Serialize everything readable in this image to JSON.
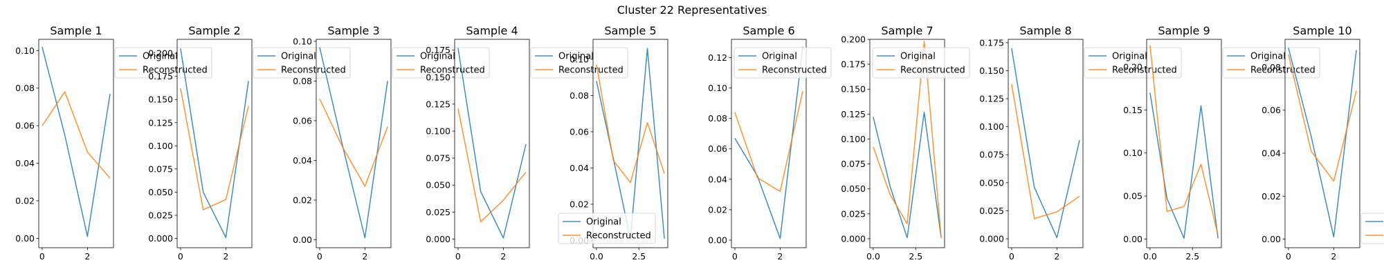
{
  "suptitle": "Cluster 22 Representatives",
  "colors": {
    "original": "#1f77b4",
    "reconstructed": "#ff7f0e"
  },
  "chart_data": [
    {
      "type": "line",
      "title": "Sample 1",
      "xlim": [
        -0.15,
        3.15
      ],
      "ylim": [
        -0.005,
        0.106
      ],
      "xticks": [
        {
          "v": 0,
          "t": "0"
        },
        {
          "v": 2,
          "t": "2"
        }
      ],
      "yticks": [
        {
          "v": 0,
          "t": "0.00"
        },
        {
          "v": 0.02,
          "t": "0.02"
        },
        {
          "v": 0.04,
          "t": "0.04"
        },
        {
          "v": 0.06,
          "t": "0.06"
        },
        {
          "v": 0.08,
          "t": "0.08"
        },
        {
          "v": 0.1,
          "t": "0.10"
        }
      ],
      "legend": "upper-right-outside",
      "series": [
        {
          "name": "Original",
          "x": [
            0,
            1,
            2,
            3
          ],
          "y": [
            0.102,
            0.055,
            0.001,
            0.077
          ]
        },
        {
          "name": "Reconstructed",
          "x": [
            0,
            1,
            2,
            3
          ],
          "y": [
            0.06,
            0.078,
            0.046,
            0.032
          ]
        }
      ]
    },
    {
      "type": "line",
      "title": "Sample 2",
      "xlim": [
        -0.15,
        3.15
      ],
      "ylim": [
        -0.01,
        0.215
      ],
      "xticks": [
        {
          "v": 0,
          "t": "0"
        },
        {
          "v": 2,
          "t": "2"
        }
      ],
      "yticks": [
        {
          "v": 0,
          "t": "0.000"
        },
        {
          "v": 0.025,
          "t": "0.025"
        },
        {
          "v": 0.05,
          "t": "0.050"
        },
        {
          "v": 0.075,
          "t": "0.075"
        },
        {
          "v": 0.1,
          "t": "0.100"
        },
        {
          "v": 0.125,
          "t": "0.125"
        },
        {
          "v": 0.15,
          "t": "0.150"
        },
        {
          "v": 0.175,
          "t": "0.175"
        },
        {
          "v": 0.2,
          "t": "0.200"
        }
      ],
      "legend": "upper-right-outside",
      "series": [
        {
          "name": "Original",
          "x": [
            0,
            1,
            2,
            3
          ],
          "y": [
            0.205,
            0.05,
            0.001,
            0.17
          ]
        },
        {
          "name": "Reconstructed",
          "x": [
            0,
            1,
            2,
            3
          ],
          "y": [
            0.162,
            0.031,
            0.042,
            0.143
          ]
        }
      ]
    },
    {
      "type": "line",
      "title": "Sample 3",
      "xlim": [
        -0.15,
        3.15
      ],
      "ylim": [
        -0.004,
        0.101
      ],
      "xticks": [
        {
          "v": 0,
          "t": "0"
        },
        {
          "v": 2,
          "t": "2"
        }
      ],
      "yticks": [
        {
          "v": 0,
          "t": "0.00"
        },
        {
          "v": 0.02,
          "t": "0.02"
        },
        {
          "v": 0.04,
          "t": "0.04"
        },
        {
          "v": 0.06,
          "t": "0.06"
        },
        {
          "v": 0.08,
          "t": "0.08"
        },
        {
          "v": 0.1,
          "t": "0.10"
        }
      ],
      "legend": "upper-right-outside",
      "series": [
        {
          "name": "Original",
          "x": [
            0,
            1,
            2,
            3
          ],
          "y": [
            0.097,
            0.048,
            0.001,
            0.08
          ]
        },
        {
          "name": "Reconstructed",
          "x": [
            0,
            1,
            2,
            3
          ],
          "y": [
            0.071,
            0.047,
            0.027,
            0.057
          ]
        }
      ]
    },
    {
      "type": "line",
      "title": "Sample 4",
      "xlim": [
        -0.15,
        3.15
      ],
      "ylim": [
        -0.008,
        0.185
      ],
      "xticks": [
        {
          "v": 0,
          "t": "0"
        },
        {
          "v": 2,
          "t": "2"
        }
      ],
      "yticks": [
        {
          "v": 0,
          "t": "0.000"
        },
        {
          "v": 0.025,
          "t": "0.025"
        },
        {
          "v": 0.05,
          "t": "0.050"
        },
        {
          "v": 0.075,
          "t": "0.075"
        },
        {
          "v": 0.1,
          "t": "0.100"
        },
        {
          "v": 0.125,
          "t": "0.125"
        },
        {
          "v": 0.15,
          "t": "0.150"
        },
        {
          "v": 0.175,
          "t": "0.175"
        }
      ],
      "legend": "upper-right-outside",
      "series": [
        {
          "name": "Original",
          "x": [
            0,
            1,
            2,
            3
          ],
          "y": [
            0.177,
            0.044,
            0.001,
            0.088
          ]
        },
        {
          "name": "Reconstructed",
          "x": [
            0,
            1,
            2,
            3
          ],
          "y": [
            0.121,
            0.016,
            0.036,
            0.062
          ]
        }
      ]
    },
    {
      "type": "line",
      "title": "Sample 5",
      "xlim": [
        -0.2,
        4.2
      ],
      "ylim": [
        -0.004,
        0.111
      ],
      "xticks": [
        {
          "v": 0,
          "t": "0.0"
        },
        {
          "v": 2.5,
          "t": "2.5"
        }
      ],
      "yticks": [
        {
          "v": 0,
          "t": "0.00"
        },
        {
          "v": 0.02,
          "t": "0.02"
        },
        {
          "v": 0.04,
          "t": "0.04"
        },
        {
          "v": 0.06,
          "t": "0.06"
        },
        {
          "v": 0.08,
          "t": "0.08"
        },
        {
          "v": 0.1,
          "t": "0.10"
        }
      ],
      "legend": "lower-left",
      "series": [
        {
          "name": "Original",
          "x": [
            0,
            1,
            2,
            3,
            4
          ],
          "y": [
            0.088,
            0.045,
            0.001,
            0.106,
            0.001
          ]
        },
        {
          "name": "Reconstructed",
          "x": [
            0,
            1,
            2,
            3,
            4
          ],
          "y": [
            0.097,
            0.044,
            0.032,
            0.065,
            0.037
          ]
        }
      ]
    },
    {
      "type": "line",
      "title": "Sample 6",
      "xlim": [
        -0.15,
        3.15
      ],
      "ylim": [
        -0.005,
        0.132
      ],
      "xticks": [
        {
          "v": 0,
          "t": "0"
        },
        {
          "v": 2,
          "t": "2"
        }
      ],
      "yticks": [
        {
          "v": 0,
          "t": "0.00"
        },
        {
          "v": 0.02,
          "t": "0.02"
        },
        {
          "v": 0.04,
          "t": "0.04"
        },
        {
          "v": 0.06,
          "t": "0.06"
        },
        {
          "v": 0.08,
          "t": "0.08"
        },
        {
          "v": 0.1,
          "t": "0.10"
        },
        {
          "v": 0.12,
          "t": "0.12"
        }
      ],
      "legend": "upper-left",
      "series": [
        {
          "name": "Original",
          "x": [
            0,
            1,
            2,
            3
          ],
          "y": [
            0.067,
            0.042,
            0.001,
            0.127
          ]
        },
        {
          "name": "Reconstructed",
          "x": [
            0,
            1,
            2,
            3
          ],
          "y": [
            0.084,
            0.041,
            0.032,
            0.098
          ]
        }
      ]
    },
    {
      "type": "line",
      "title": "Sample 7",
      "xlim": [
        -0.2,
        4.2
      ],
      "ylim": [
        -0.009,
        0.2
      ],
      "xticks": [
        {
          "v": 0,
          "t": "0.0"
        },
        {
          "v": 2.5,
          "t": "2.5"
        }
      ],
      "yticks": [
        {
          "v": 0,
          "t": "0.000"
        },
        {
          "v": 0.025,
          "t": "0.025"
        },
        {
          "v": 0.05,
          "t": "0.050"
        },
        {
          "v": 0.075,
          "t": "0.075"
        },
        {
          "v": 0.1,
          "t": "0.100"
        },
        {
          "v": 0.125,
          "t": "0.125"
        },
        {
          "v": 0.15,
          "t": "0.150"
        },
        {
          "v": 0.175,
          "t": "0.175"
        },
        {
          "v": 0.2,
          "t": "0.200"
        }
      ],
      "legend": "upper-left",
      "series": [
        {
          "name": "Original",
          "x": [
            0,
            1,
            2,
            3,
            4
          ],
          "y": [
            0.122,
            0.052,
            0.001,
            0.127,
            0.001
          ]
        },
        {
          "name": "Reconstructed",
          "x": [
            0,
            1,
            2,
            3,
            4
          ],
          "y": [
            0.092,
            0.044,
            0.015,
            0.198,
            0.001
          ]
        }
      ]
    },
    {
      "type": "line",
      "title": "Sample 8",
      "xlim": [
        -0.15,
        3.15
      ],
      "ylim": [
        -0.008,
        0.178
      ],
      "xticks": [
        {
          "v": 0,
          "t": "0"
        },
        {
          "v": 2,
          "t": "2"
        }
      ],
      "yticks": [
        {
          "v": 0,
          "t": "0.000"
        },
        {
          "v": 0.025,
          "t": "0.025"
        },
        {
          "v": 0.05,
          "t": "0.050"
        },
        {
          "v": 0.075,
          "t": "0.075"
        },
        {
          "v": 0.1,
          "t": "0.100"
        },
        {
          "v": 0.125,
          "t": "0.125"
        },
        {
          "v": 0.15,
          "t": "0.150"
        },
        {
          "v": 0.175,
          "t": "0.175"
        }
      ],
      "legend": "upper-right-outside",
      "series": [
        {
          "name": "Original",
          "x": [
            0,
            1,
            2,
            3
          ],
          "y": [
            0.17,
            0.046,
            0.001,
            0.088
          ]
        },
        {
          "name": "Reconstructed",
          "x": [
            0,
            1,
            2,
            3
          ],
          "y": [
            0.138,
            0.018,
            0.024,
            0.038
          ]
        }
      ]
    },
    {
      "type": "line",
      "title": "Sample 9",
      "xlim": [
        -0.2,
        4.2
      ],
      "ylim": [
        -0.01,
        0.232
      ],
      "xticks": [
        {
          "v": 0,
          "t": "0.0"
        },
        {
          "v": 2.5,
          "t": "2.5"
        }
      ],
      "yticks": [
        {
          "v": 0,
          "t": "0.00"
        },
        {
          "v": 0.05,
          "t": "0.05"
        },
        {
          "v": 0.1,
          "t": "0.10"
        },
        {
          "v": 0.15,
          "t": "0.15"
        },
        {
          "v": 0.2,
          "t": "0.20"
        }
      ],
      "legend": "upper-right-outside",
      "series": [
        {
          "name": "Original",
          "x": [
            0,
            1,
            2,
            3,
            4
          ],
          "y": [
            0.17,
            0.047,
            0.001,
            0.155,
            0.001
          ]
        },
        {
          "name": "Reconstructed",
          "x": [
            0,
            1,
            2,
            3,
            4
          ],
          "y": [
            0.225,
            0.032,
            0.038,
            0.087,
            0.005
          ]
        }
      ]
    },
    {
      "type": "line",
      "title": "Sample 10",
      "xlim": [
        -0.15,
        3.15
      ],
      "ylim": [
        -0.004,
        0.093
      ],
      "xticks": [
        {
          "v": 0,
          "t": "0"
        },
        {
          "v": 2,
          "t": "2"
        }
      ],
      "yticks": [
        {
          "v": 0,
          "t": "0.00"
        },
        {
          "v": 0.02,
          "t": "0.02"
        },
        {
          "v": 0.04,
          "t": "0.04"
        },
        {
          "v": 0.06,
          "t": "0.06"
        },
        {
          "v": 0.08,
          "t": "0.08"
        }
      ],
      "legend": "lower-right",
      "series": [
        {
          "name": "Original",
          "x": [
            0,
            1,
            2,
            3
          ],
          "y": [
            0.089,
            0.048,
            0.001,
            0.088
          ]
        },
        {
          "name": "Reconstructed",
          "x": [
            0,
            1,
            2,
            3
          ],
          "y": [
            0.086,
            0.041,
            0.027,
            0.069
          ]
        }
      ]
    }
  ]
}
